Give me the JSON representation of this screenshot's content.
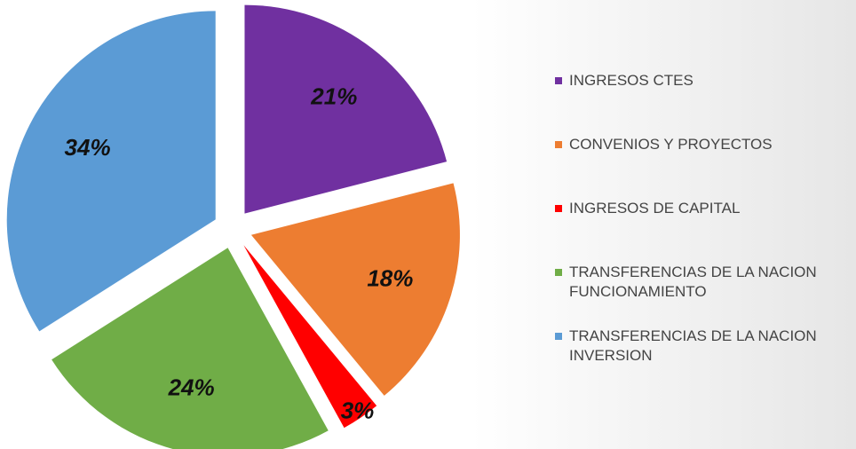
{
  "chart_data": {
    "type": "pie",
    "categories": [
      "INGRESOS CTES",
      "CONVENIOS Y PROYECTOS",
      "INGRESOS DE CAPITAL",
      "TRANSFERENCIAS DE LA NACION FUNCIONAMIENTO",
      "TRANSFERENCIAS DE LA NACION INVERSION"
    ],
    "values": [
      21,
      18,
      3,
      24,
      34
    ],
    "value_labels": [
      "21%",
      "18%",
      "3%",
      "24%",
      "34%"
    ],
    "colors": [
      "#7030a0",
      "#ed7d31",
      "#ff0000",
      "#70ad47",
      "#5b9bd5"
    ],
    "legend": "right"
  }
}
